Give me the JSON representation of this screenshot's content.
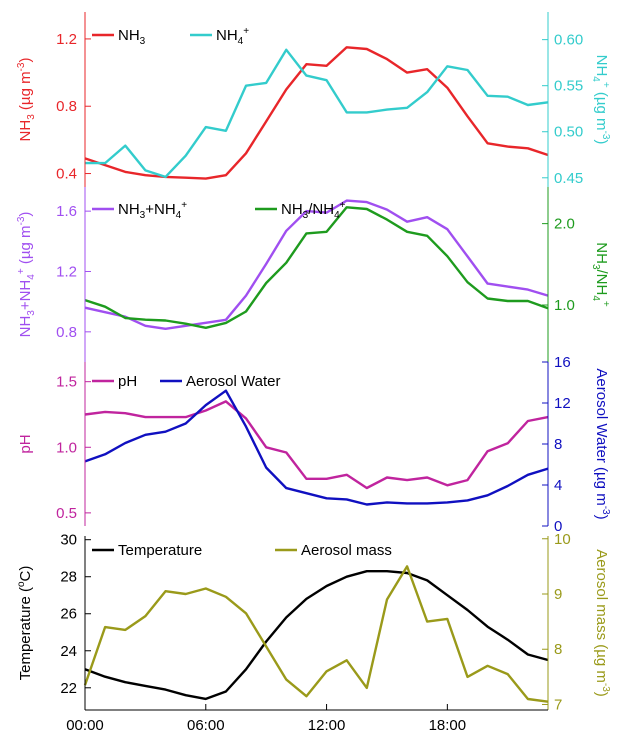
{
  "chart_data": [
    {
      "type": "line",
      "x": [
        0,
        1,
        2,
        3,
        4,
        5,
        6,
        7,
        8,
        9,
        10,
        11,
        12,
        13,
        14,
        15,
        16,
        17,
        18,
        19,
        20,
        21,
        22,
        23
      ],
      "xlim": [
        0,
        23
      ],
      "left_axis": {
        "label_parts": [
          {
            "t": "NH"
          },
          {
            "t": "3",
            "sub": true
          },
          {
            "t": " (µg m"
          },
          {
            "t": "-3",
            "sup": true
          },
          {
            "t": ")"
          }
        ],
        "ylim": [
          0.32,
          1.36
        ],
        "ticks": [
          {
            "v": 0.4,
            "label": "0.4"
          },
          {
            "v": 0.8,
            "label": "0.8"
          },
          {
            "v": 1.2,
            "label": "1.2"
          }
        ],
        "color": "#e8262a"
      },
      "right_axis": {
        "label_parts": [
          {
            "t": "NH"
          },
          {
            "t": "4",
            "sub": true
          },
          {
            "t": "+",
            "sup": true
          },
          {
            "t": " (µg m"
          },
          {
            "t": "-3",
            "sup": true
          },
          {
            "t": ")"
          }
        ],
        "ylim": [
          0.44,
          0.63
        ],
        "ticks": [
          {
            "v": 0.45,
            "label": "0.45"
          },
          {
            "v": 0.5,
            "label": "0.50"
          },
          {
            "v": 0.55,
            "label": "0.55"
          },
          {
            "v": 0.6,
            "label": "0.60"
          }
        ],
        "color": "#33cccc"
      },
      "series": [
        {
          "name_parts": [
            {
              "t": "NH"
            },
            {
              "t": "3",
              "sub": true
            }
          ],
          "axis": "left",
          "color": "#e8262a",
          "values": [
            0.49,
            0.45,
            0.41,
            0.39,
            0.38,
            0.375,
            0.37,
            0.39,
            0.52,
            0.71,
            0.9,
            1.05,
            1.04,
            1.15,
            1.14,
            1.08,
            1.0,
            1.02,
            0.91,
            0.74,
            0.58,
            0.56,
            0.55,
            0.51
          ]
        },
        {
          "name_parts": [
            {
              "t": "NH"
            },
            {
              "t": "4",
              "sub": true
            },
            {
              "t": "+",
              "sup": true
            }
          ],
          "axis": "right",
          "color": "#33cccc",
          "values": [
            0.466,
            0.466,
            0.485,
            0.458,
            0.451,
            0.474,
            0.505,
            0.501,
            0.55,
            0.553,
            0.589,
            0.561,
            0.556,
            0.521,
            0.521,
            0.524,
            0.526,
            0.543,
            0.571,
            0.567,
            0.539,
            0.538,
            0.529,
            0.532
          ]
        }
      ]
    },
    {
      "type": "line",
      "x": [
        0,
        1,
        2,
        3,
        4,
        5,
        6,
        7,
        8,
        9,
        10,
        11,
        12,
        13,
        14,
        15,
        16,
        17,
        18,
        19,
        20,
        21,
        22,
        23
      ],
      "xlim": [
        0,
        23
      ],
      "left_axis": {
        "label_parts": [
          {
            "t": "NH"
          },
          {
            "t": "3",
            "sub": true
          },
          {
            "t": "+NH"
          },
          {
            "t": "4",
            "sub": true
          },
          {
            "t": "+",
            "sup": true
          },
          {
            "t": " (µg m"
          },
          {
            "t": "-3",
            "sup": true
          },
          {
            "t": ")"
          }
        ],
        "ylim": [
          0.6,
          1.76
        ],
        "ticks": [
          {
            "v": 0.8,
            "label": "0.8"
          },
          {
            "v": 1.2,
            "label": "1.2"
          },
          {
            "v": 1.6,
            "label": "1.6"
          }
        ],
        "color": "#a04ff0"
      },
      "right_axis": {
        "label_parts": [
          {
            "t": "NH"
          },
          {
            "t": "3",
            "sub": true
          },
          {
            "t": "/NH"
          },
          {
            "t": "4",
            "sub": true
          },
          {
            "t": "+",
            "sup": true
          }
        ],
        "ylim": [
          0.3,
          2.45
        ],
        "ticks": [
          {
            "v": 1.0,
            "label": "1.0"
          },
          {
            "v": 2.0,
            "label": "2.0"
          }
        ],
        "color": "#1e9b1e"
      },
      "series": [
        {
          "name_parts": [
            {
              "t": "NH"
            },
            {
              "t": "3",
              "sub": true
            },
            {
              "t": "+NH"
            },
            {
              "t": "4",
              "sub": true
            },
            {
              "t": "+",
              "sup": true
            }
          ],
          "axis": "left",
          "color": "#a04ff0",
          "values": [
            0.96,
            0.93,
            0.9,
            0.84,
            0.82,
            0.84,
            0.86,
            0.88,
            1.04,
            1.25,
            1.47,
            1.6,
            1.59,
            1.67,
            1.66,
            1.61,
            1.53,
            1.56,
            1.48,
            1.3,
            1.12,
            1.1,
            1.08,
            1.04
          ]
        },
        {
          "name_parts": [
            {
              "t": "NH"
            },
            {
              "t": "3",
              "sub": true
            },
            {
              "t": "/NH"
            },
            {
              "t": "4",
              "sub": true
            },
            {
              "t": "+",
              "sup": true
            }
          ],
          "axis": "right",
          "color": "#1e9b1e",
          "values": [
            1.06,
            0.98,
            0.84,
            0.82,
            0.81,
            0.77,
            0.72,
            0.78,
            0.92,
            1.27,
            1.52,
            1.88,
            1.9,
            2.2,
            2.18,
            2.05,
            1.9,
            1.85,
            1.6,
            1.28,
            1.08,
            1.05,
            1.05,
            0.96
          ]
        }
      ]
    },
    {
      "type": "line",
      "x": [
        0,
        1,
        2,
        3,
        4,
        5,
        6,
        7,
        8,
        9,
        10,
        11,
        12,
        13,
        14,
        15,
        16,
        17,
        18,
        19,
        20,
        21,
        22,
        23
      ],
      "xlim": [
        0,
        23
      ],
      "left_axis": {
        "label_parts": [
          {
            "t": "pH"
          }
        ],
        "ylim": [
          0.4,
          1.65
        ],
        "ticks": [
          {
            "v": 0.5,
            "label": "0.5"
          },
          {
            "v": 1.0,
            "label": "1.0"
          },
          {
            "v": 1.5,
            "label": "1.5"
          }
        ],
        "color": "#c0249e"
      },
      "right_axis": {
        "label_parts": [
          {
            "t": "Aerosol Water (µg m"
          },
          {
            "t": "-3",
            "sup": true
          },
          {
            "t": ")"
          }
        ],
        "ylim": [
          0,
          16
        ],
        "ticks": [
          {
            "v": 0,
            "label": "0"
          },
          {
            "v": 4,
            "label": "4"
          },
          {
            "v": 8,
            "label": "8"
          },
          {
            "v": 12,
            "label": "12"
          },
          {
            "v": 16,
            "label": "16"
          }
        ],
        "color": "#1010c0"
      },
      "series": [
        {
          "name_parts": [
            {
              "t": "pH"
            }
          ],
          "axis": "left",
          "color": "#c0249e",
          "values": [
            1.25,
            1.27,
            1.26,
            1.23,
            1.23,
            1.23,
            1.28,
            1.35,
            1.22,
            1.0,
            0.96,
            0.76,
            0.76,
            0.79,
            0.69,
            0.77,
            0.75,
            0.77,
            0.71,
            0.75,
            0.97,
            1.03,
            1.2,
            1.23
          ]
        },
        {
          "name_parts": [
            {
              "t": "Aerosol Water"
            }
          ],
          "axis": "right",
          "color": "#1010c0",
          "values": [
            6.3,
            7.0,
            8.1,
            8.9,
            9.2,
            10.0,
            11.8,
            13.2,
            9.7,
            5.7,
            3.7,
            3.2,
            2.7,
            2.6,
            2.1,
            2.3,
            2.2,
            2.2,
            2.3,
            2.5,
            3.0,
            3.9,
            5.0,
            5.6
          ]
        }
      ]
    },
    {
      "type": "line",
      "x": [
        0,
        1,
        2,
        3,
        4,
        5,
        6,
        7,
        8,
        9,
        10,
        11,
        12,
        13,
        14,
        15,
        16,
        17,
        18,
        19,
        20,
        21,
        22,
        23
      ],
      "xlim": [
        0,
        23
      ],
      "xticks": [
        {
          "v": 0,
          "label": "00:00"
        },
        {
          "v": 6,
          "label": "06:00"
        },
        {
          "v": 12,
          "label": "12:00"
        },
        {
          "v": 18,
          "label": "18:00"
        }
      ],
      "left_axis": {
        "label_parts": [
          {
            "t": "Temperature ("
          },
          {
            "t": "o",
            "sup": true
          },
          {
            "t": "C)"
          }
        ],
        "ylim": [
          20.8,
          30.2
        ],
        "ticks": [
          {
            "v": 22,
            "label": "22"
          },
          {
            "v": 24,
            "label": "24"
          },
          {
            "v": 26,
            "label": "26"
          },
          {
            "v": 28,
            "label": "28"
          },
          {
            "v": 30,
            "label": "30"
          }
        ],
        "color": "#000000"
      },
      "right_axis": {
        "label_parts": [
          {
            "t": "Aerosol mass (µg m"
          },
          {
            "t": "-3",
            "sup": true
          },
          {
            "t": ")"
          }
        ],
        "ylim": [
          6.9,
          10.05
        ],
        "ticks": [
          {
            "v": 7,
            "label": "7"
          },
          {
            "v": 8,
            "label": "8"
          },
          {
            "v": 9,
            "label": "9"
          },
          {
            "v": 10,
            "label": "10"
          }
        ],
        "color": "#9a9a1a"
      },
      "series": [
        {
          "name_parts": [
            {
              "t": "Temperature"
            }
          ],
          "axis": "left",
          "color": "#000000",
          "values": [
            23.0,
            22.6,
            22.3,
            22.1,
            21.9,
            21.6,
            21.4,
            21.8,
            23.0,
            24.5,
            25.8,
            26.8,
            27.5,
            28.0,
            28.3,
            28.3,
            28.2,
            27.8,
            27.0,
            26.2,
            25.3,
            24.6,
            23.8,
            23.5
          ]
        },
        {
          "name_parts": [
            {
              "t": "Aerosol mass"
            }
          ],
          "axis": "right",
          "color": "#9a9a1a",
          "values": [
            7.35,
            8.4,
            8.35,
            8.6,
            9.05,
            9.0,
            9.1,
            8.95,
            8.65,
            8.05,
            7.45,
            7.15,
            7.6,
            7.8,
            7.3,
            8.9,
            9.5,
            8.5,
            8.55,
            7.5,
            7.7,
            7.55,
            7.1,
            7.05
          ]
        }
      ]
    }
  ]
}
